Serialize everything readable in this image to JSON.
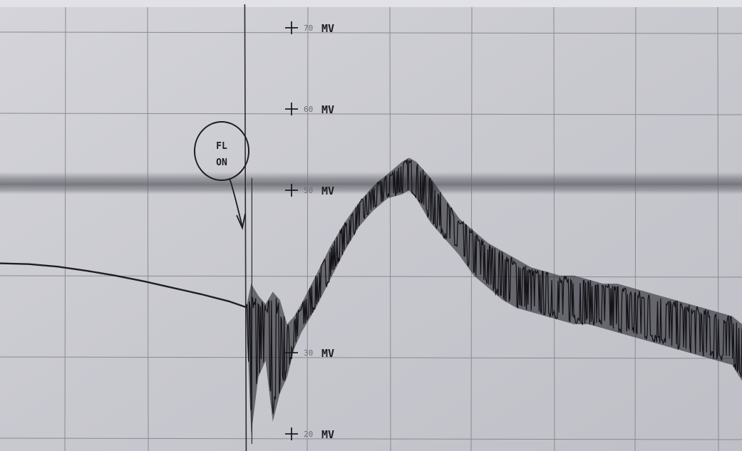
{
  "chart_data": {
    "type": "line",
    "title": "",
    "xlabel": "",
    "ylabel": "",
    "y_unit": "MV",
    "ylim": [
      18,
      74
    ],
    "grid": true,
    "y_ticks": [
      {
        "value": 70,
        "number": "70",
        "unit": "MV"
      },
      {
        "value": 60,
        "number": "60",
        "unit": "MV"
      },
      {
        "value": 50,
        "number": "50",
        "unit": "MV"
      },
      {
        "value": 30,
        "number": "30",
        "unit": "MV"
      },
      {
        "value": 20,
        "number": "20",
        "unit": "MV"
      }
    ],
    "annotation": {
      "line1": "FL",
      "line2": "ON"
    },
    "reference_band_value": 50,
    "series": [
      {
        "style": "smooth-baseline",
        "x": [
          0,
          4,
          8,
          12,
          16,
          20,
          24,
          28,
          32,
          34.3
        ],
        "y": [
          41.0,
          40.9,
          40.6,
          40.1,
          39.5,
          38.8,
          38.0,
          37.2,
          36.3,
          35.6
        ]
      },
      {
        "style": "noisy-envelope",
        "x": [
          34.3,
          35,
          36,
          37,
          38,
          39,
          40,
          41,
          42,
          44,
          46,
          48,
          50,
          52,
          54,
          56,
          57,
          58,
          59,
          60,
          62,
          64,
          66,
          68,
          70,
          72,
          74,
          76,
          78,
          80,
          82,
          84,
          86,
          88,
          90,
          92,
          94,
          96,
          98,
          100,
          102,
          103.4
        ],
        "upper": [
          35.6,
          38.5,
          37.0,
          36.0,
          37.5,
          36.5,
          33.5,
          34.5,
          36.0,
          39.5,
          43.0,
          46.0,
          48.5,
          50.5,
          52.0,
          53.5,
          54.0,
          53.5,
          52.5,
          51.5,
          49.0,
          46.5,
          45.0,
          43.5,
          42.5,
          41.5,
          40.5,
          40.0,
          39.5,
          39.5,
          39.0,
          38.5,
          38.5,
          38.0,
          37.5,
          37.0,
          36.5,
          36.0,
          35.5,
          35.0,
          34.5,
          33.5
        ],
        "lower": [
          35.6,
          20.0,
          27.0,
          29.0,
          21.5,
          25.0,
          27.0,
          30.5,
          32.5,
          35.5,
          39.0,
          42.5,
          45.5,
          47.5,
          49.0,
          49.5,
          50.0,
          49.0,
          47.5,
          46.0,
          44.0,
          42.0,
          39.5,
          38.0,
          36.5,
          35.5,
          35.0,
          34.5,
          34.0,
          33.5,
          33.5,
          33.0,
          32.5,
          32.0,
          31.5,
          31.0,
          30.5,
          30.0,
          29.5,
          29.0,
          28.5,
          26.5
        ]
      }
    ]
  }
}
